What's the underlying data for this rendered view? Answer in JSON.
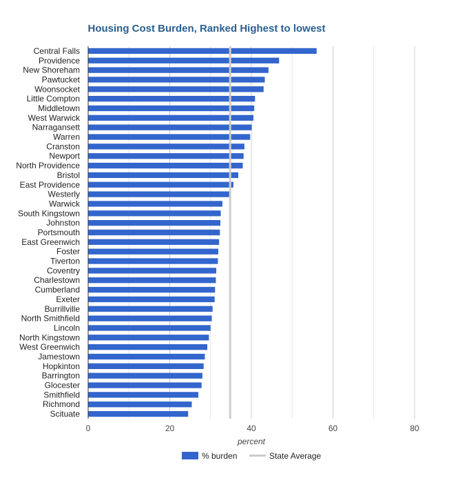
{
  "chart_data": {
    "type": "bar",
    "orientation": "horizontal",
    "title": "Housing Cost Burden, Ranked Highest to lowest",
    "xlabel": "percent",
    "ylabel": "",
    "xlim": [
      0,
      80
    ],
    "xticks": [
      0,
      20,
      40,
      60,
      80
    ],
    "grid": true,
    "legend_position": "bottom",
    "categories": [
      "Central Falls",
      "Providence",
      "New Shoreham",
      "Pawtucket",
      "Woonsocket",
      "Little Compton",
      "Middletown",
      "West Warwick",
      "Narragansett",
      "Warren",
      "Cranston",
      "Newport",
      "North Providence",
      "Bristol",
      "East Providence",
      "Westerly",
      "Warwick",
      "South Kingstown",
      "Johnston",
      "Portsmouth",
      "East Greenwich",
      "Foster",
      "Tiverton",
      "Coventry",
      "Charlestown",
      "Cumberland",
      "Exeter",
      "Burrillville",
      "North Smithfield",
      "Lincoln",
      "North Kingstown",
      "West Greenwich",
      "Jamestown",
      "Hopkinton",
      "Barrington",
      "Glocester",
      "Smithfield",
      "Richmond",
      "Scituate"
    ],
    "series": [
      {
        "name": "% burden",
        "color": "#3366cc",
        "values": [
          56.0,
          46.8,
          44.2,
          43.3,
          43.0,
          40.9,
          40.7,
          40.5,
          40.1,
          39.7,
          38.3,
          38.1,
          37.9,
          36.8,
          35.6,
          34.7,
          32.9,
          32.5,
          32.4,
          32.3,
          32.1,
          31.9,
          31.8,
          31.4,
          31.3,
          31.1,
          31.0,
          30.5,
          30.3,
          30.0,
          29.6,
          29.2,
          28.6,
          28.3,
          28.0,
          27.8,
          27.0,
          25.4,
          24.5
        ]
      },
      {
        "name": "State Average",
        "color": "#cccccc",
        "type": "reference_line",
        "value": 34.8
      }
    ]
  }
}
